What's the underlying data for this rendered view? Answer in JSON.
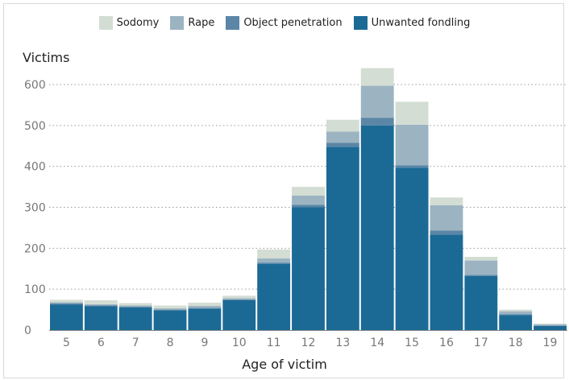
{
  "chart_data": {
    "type": "bar",
    "stacked": true,
    "ylabel": "Victims",
    "xlabel": "Age of victim",
    "ylim": [
      0,
      650
    ],
    "yticks": [
      0,
      100,
      200,
      300,
      400,
      500,
      600
    ],
    "grid": "dotted horizontal",
    "legend_position": "top-center",
    "categories": [
      "5",
      "6",
      "7",
      "8",
      "9",
      "10",
      "11",
      "12",
      "13",
      "14",
      "15",
      "16",
      "17",
      "18",
      "19"
    ],
    "series": [
      {
        "name": "Unwanted fondling",
        "color": "#1b6a96",
        "values": [
          62,
          58,
          55,
          48,
          52,
          73,
          162,
          300,
          448,
          500,
          397,
          233,
          132,
          37,
          10
        ]
      },
      {
        "name": "Object penetration",
        "color": "#5b86a6",
        "values": [
          3,
          2,
          2,
          2,
          2,
          2,
          3,
          6,
          10,
          19,
          6,
          10,
          3,
          2,
          1
        ]
      },
      {
        "name": "Rape",
        "color": "#9cb4c2",
        "values": [
          3,
          3,
          3,
          3,
          5,
          3,
          10,
          23,
          27,
          78,
          99,
          62,
          35,
          7,
          3
        ]
      },
      {
        "name": "Sodomy",
        "color": "#d3ddd3",
        "values": [
          6,
          10,
          6,
          7,
          8,
          6,
          22,
          21,
          29,
          43,
          56,
          19,
          9,
          4,
          2
        ]
      }
    ]
  }
}
